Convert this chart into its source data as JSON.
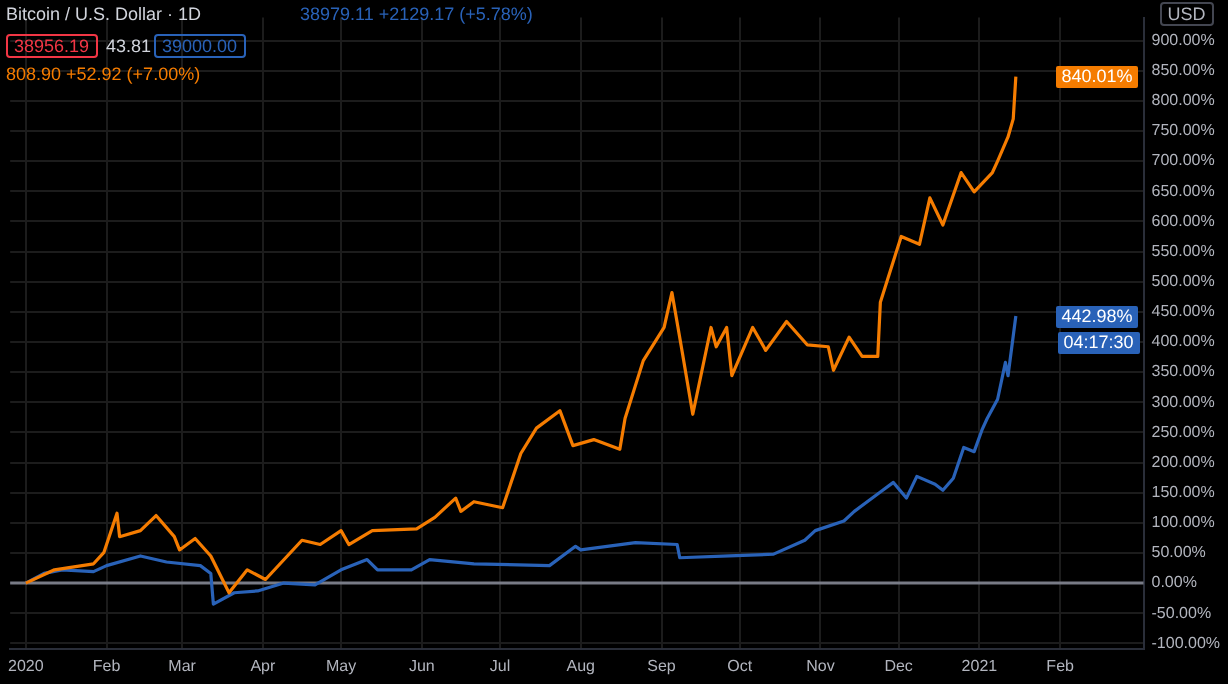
{
  "chart_data": {
    "type": "line",
    "title": "Bitcoin / U.S. Dollar · 1D",
    "annotations": [
      "38979.11 +2129.17 (+5.78%)",
      "38956.19",
      "43.81",
      "39000.00",
      "808.90 +52.92 (+7.00%)",
      "USD",
      "840.01%",
      "442.98%",
      "04:17:30"
    ],
    "xlim": [
      "2019-12-26",
      "2021-03-05"
    ],
    "xticks": [
      {
        "value": "2020-01-01",
        "label": "2020"
      },
      {
        "value": "2020-02-01",
        "label": "Feb"
      },
      {
        "value": "2020-03-01",
        "label": "Mar"
      },
      {
        "value": "2020-04-01",
        "label": "Apr"
      },
      {
        "value": "2020-05-01",
        "label": "May"
      },
      {
        "value": "2020-06-01",
        "label": "Jun"
      },
      {
        "value": "2020-07-01",
        "label": "Jul"
      },
      {
        "value": "2020-08-01",
        "label": "Aug"
      },
      {
        "value": "2020-09-01",
        "label": "Sep"
      },
      {
        "value": "2020-10-01",
        "label": "Oct"
      },
      {
        "value": "2020-11-01",
        "label": "Nov"
      },
      {
        "value": "2020-12-01",
        "label": "Dec"
      },
      {
        "value": "2021-01-01",
        "label": "2021"
      },
      {
        "value": "2021-02-01",
        "label": "Feb"
      }
    ],
    "ylim": [
      -109,
      938
    ],
    "yticks": [
      {
        "value": -100,
        "label": "-100.00%"
      },
      {
        "value": -50,
        "label": "-50.00%"
      },
      {
        "value": 0,
        "label": "0.00%"
      },
      {
        "value": 50,
        "label": "50.00%"
      },
      {
        "value": 100,
        "label": "100.00%"
      },
      {
        "value": 150,
        "label": "150.00%"
      },
      {
        "value": 200,
        "label": "200.00%"
      },
      {
        "value": 250,
        "label": "250.00%"
      },
      {
        "value": 300,
        "label": "300.00%"
      },
      {
        "value": 350,
        "label": "350.00%"
      },
      {
        "value": 400,
        "label": "400.00%"
      },
      {
        "value": 450,
        "label": "450.00%"
      },
      {
        "value": 500,
        "label": "500.00%"
      },
      {
        "value": 550,
        "label": "550.00%"
      },
      {
        "value": 600,
        "label": "600.00%"
      },
      {
        "value": 650,
        "label": "650.00%"
      },
      {
        "value": 700,
        "label": "700.00%"
      },
      {
        "value": 750,
        "label": "750.00%"
      },
      {
        "value": 800,
        "label": "800.00%"
      },
      {
        "value": 850,
        "label": "850.00%"
      },
      {
        "value": 900,
        "label": "900.00%"
      }
    ],
    "grid": true,
    "legend": false,
    "marker": "none",
    "ref_lines": [
      {
        "axis": "y",
        "value": 0,
        "color": "#787b86"
      }
    ],
    "series": [
      {
        "color": "#f57c00",
        "x": [
          "2020-01-01",
          "2020-01-12",
          "2020-01-27",
          "2020-01-31",
          "2020-02-05",
          "2020-02-06",
          "2020-02-14",
          "2020-02-20",
          "2020-02-27",
          "2020-02-29",
          "2020-03-06",
          "2020-03-12",
          "2020-03-19",
          "2020-03-26",
          "2020-04-02",
          "2020-04-16",
          "2020-04-23",
          "2020-05-01",
          "2020-05-04",
          "2020-05-13",
          "2020-05-30",
          "2020-06-06",
          "2020-06-14",
          "2020-06-16",
          "2020-06-21",
          "2020-07-02",
          "2020-07-09",
          "2020-07-15",
          "2020-07-24",
          "2020-07-29",
          "2020-08-06",
          "2020-08-16",
          "2020-08-18",
          "2020-08-25",
          "2020-09-02",
          "2020-09-05",
          "2020-09-09",
          "2020-09-13",
          "2020-09-20",
          "2020-09-22",
          "2020-09-26",
          "2020-09-28",
          "2020-10-06",
          "2020-10-11",
          "2020-10-19",
          "2020-10-27",
          "2020-11-04",
          "2020-11-06",
          "2020-11-12",
          "2020-11-17",
          "2020-11-23",
          "2020-11-24",
          "2020-12-02",
          "2020-12-09",
          "2020-12-13",
          "2020-12-18",
          "2020-12-25",
          "2020-12-30",
          "2021-01-06",
          "2021-01-08",
          "2021-01-12",
          "2021-01-14",
          "2021-01-15"
        ],
        "values": [
          0,
          22,
          32,
          51,
          116,
          77,
          87,
          112,
          77,
          55,
          74,
          45,
          -16,
          22,
          6,
          71,
          64,
          87,
          64,
          87,
          90,
          109,
          141,
          119,
          135,
          125,
          215,
          257,
          286,
          228,
          238,
          222,
          273,
          369,
          424,
          482,
          382,
          280,
          424,
          392,
          424,
          344,
          424,
          386,
          434,
          395,
          392,
          353,
          408,
          376,
          376,
          466,
          575,
          562,
          639,
          594,
          681,
          649,
          681,
          700,
          740,
          770,
          840
        ]
      },
      {
        "color": "#2962b8",
        "x": [
          "2020-01-01",
          "2020-01-08",
          "2020-01-15",
          "2020-01-27",
          "2020-02-01",
          "2020-02-14",
          "2020-02-24",
          "2020-03-08",
          "2020-03-12",
          "2020-03-13",
          "2020-03-21",
          "2020-03-30",
          "2020-04-09",
          "2020-04-21",
          "2020-05-01",
          "2020-05-11",
          "2020-05-15",
          "2020-05-28",
          "2020-06-04",
          "2020-06-21",
          "2020-07-20",
          "2020-07-30",
          "2020-08-01",
          "2020-08-22",
          "2020-09-07",
          "2020-09-08",
          "2020-09-27",
          "2020-10-14",
          "2020-10-26",
          "2020-10-30",
          "2020-11-10",
          "2020-11-14",
          "2020-11-24",
          "2020-11-29",
          "2020-12-04",
          "2020-12-08",
          "2020-12-15",
          "2020-12-18",
          "2020-12-22",
          "2020-12-26",
          "2020-12-30",
          "2021-01-02",
          "2021-01-04",
          "2021-01-08",
          "2021-01-11",
          "2021-01-12",
          "2021-01-15"
        ],
        "values": [
          0,
          16,
          22,
          19,
          29,
          45,
          35,
          29,
          16,
          -35,
          -16,
          -13,
          0,
          -3,
          22,
          39,
          22,
          22,
          39,
          32,
          29,
          61,
          55,
          67,
          64,
          42,
          45,
          48,
          71,
          87,
          103,
          119,
          151,
          167,
          141,
          177,
          164,
          154,
          174,
          225,
          218,
          254,
          273,
          305,
          366,
          344,
          443
        ]
      }
    ]
  }
}
